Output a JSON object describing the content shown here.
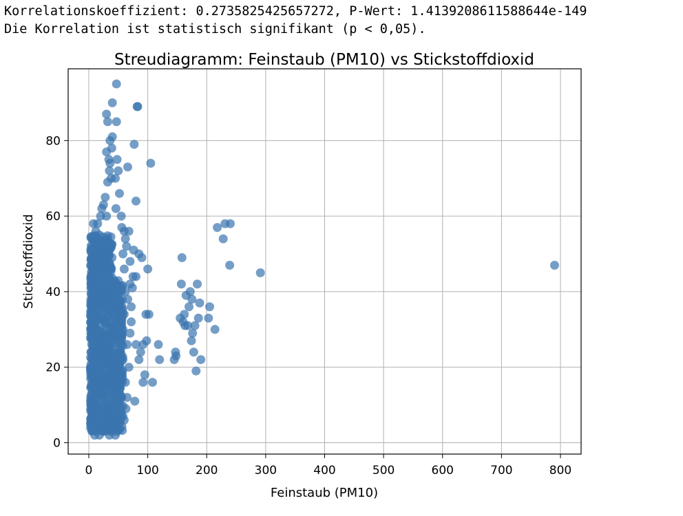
{
  "output_lines": [
    "Korrelationskoeffizient: 0.2735825425657272, P-Wert: 1.4139208611588644e-149",
    "Die Korrelation ist statistisch signifikant (p < 0,05)."
  ],
  "chart_data": {
    "type": "scatter",
    "title": "Streudiagramm: Feinstaub (PM10) vs Stickstoffdioxid",
    "xlabel": "Feinstaub (PM10)",
    "ylabel": "Stickstoffdioxid",
    "xlim": [
      -35,
      835
    ],
    "ylim": [
      -3,
      99
    ],
    "xticks": [
      0,
      100,
      200,
      300,
      400,
      500,
      600,
      700,
      800
    ],
    "yticks": [
      0,
      20,
      40,
      60,
      80
    ],
    "grid": true,
    "point_color": "#3b75af",
    "point_opacity": 0.7,
    "points": [
      [
        790,
        47
      ],
      [
        291,
        45
      ],
      [
        239,
        47
      ],
      [
        240,
        58
      ],
      [
        231,
        58
      ],
      [
        228,
        54
      ],
      [
        218,
        57
      ],
      [
        214,
        30
      ],
      [
        205,
        36
      ],
      [
        203,
        33
      ],
      [
        190,
        22
      ],
      [
        188,
        37
      ],
      [
        186,
        33
      ],
      [
        184,
        42
      ],
      [
        182,
        19
      ],
      [
        180,
        31
      ],
      [
        178,
        24
      ],
      [
        176,
        29
      ],
      [
        175,
        38
      ],
      [
        174,
        27
      ],
      [
        172,
        40
      ],
      [
        170,
        36
      ],
      [
        168,
        31
      ],
      [
        165,
        39
      ],
      [
        163,
        31
      ],
      [
        162,
        34
      ],
      [
        160,
        32
      ],
      [
        158,
        49
      ],
      [
        157,
        42
      ],
      [
        155,
        33
      ],
      [
        148,
        23
      ],
      [
        145,
        22
      ],
      [
        147,
        24
      ],
      [
        120,
        22
      ],
      [
        118,
        26
      ],
      [
        108,
        16
      ],
      [
        102,
        34
      ],
      [
        100,
        46
      ],
      [
        98,
        27
      ],
      [
        97,
        34
      ],
      [
        95,
        18
      ],
      [
        92,
        16
      ],
      [
        92,
        26
      ],
      [
        90,
        49
      ],
      [
        88,
        24
      ],
      [
        85,
        50
      ],
      [
        85,
        22
      ],
      [
        83,
        89
      ],
      [
        82,
        89
      ],
      [
        80,
        64
      ],
      [
        80,
        44
      ],
      [
        80,
        26
      ],
      [
        78,
        11
      ],
      [
        77,
        79
      ],
      [
        76,
        51
      ],
      [
        75,
        44
      ],
      [
        74,
        41
      ],
      [
        72,
        36
      ],
      [
        70,
        29
      ],
      [
        70,
        42
      ],
      [
        68,
        20
      ],
      [
        66,
        73
      ],
      [
        65,
        12
      ],
      [
        105,
        74
      ],
      [
        47,
        95
      ],
      [
        40,
        90
      ],
      [
        47,
        85
      ],
      [
        30,
        87
      ],
      [
        32,
        85
      ],
      [
        40,
        81
      ],
      [
        39,
        78
      ],
      [
        36,
        80
      ],
      [
        34,
        75
      ],
      [
        35,
        72
      ],
      [
        36,
        74
      ],
      [
        30,
        77
      ],
      [
        32,
        69
      ],
      [
        38,
        70
      ],
      [
        45,
        70
      ],
      [
        48,
        75
      ],
      [
        50,
        72
      ],
      [
        52,
        66
      ],
      [
        46,
        62
      ],
      [
        55,
        60
      ],
      [
        56,
        57
      ],
      [
        60,
        56
      ],
      [
        62,
        54
      ],
      [
        58,
        50
      ],
      [
        60,
        46
      ],
      [
        62,
        40
      ],
      [
        60,
        34
      ],
      [
        58,
        30
      ],
      [
        55,
        27
      ],
      [
        58,
        22
      ],
      [
        55,
        18
      ],
      [
        50,
        16
      ],
      [
        56,
        12
      ],
      [
        58,
        7
      ],
      [
        60,
        6
      ],
      [
        48,
        3
      ],
      [
        45,
        2
      ],
      [
        35,
        2
      ],
      [
        25,
        3
      ],
      [
        18,
        2
      ],
      [
        10,
        2
      ],
      [
        8,
        58
      ],
      [
        12,
        56
      ],
      [
        15,
        58
      ],
      [
        18,
        55
      ],
      [
        20,
        60
      ],
      [
        22,
        62
      ],
      [
        25,
        63
      ],
      [
        28,
        65
      ],
      [
        30,
        60
      ],
      [
        24,
        50
      ],
      [
        26,
        45
      ],
      [
        20,
        42
      ],
      [
        10,
        50
      ],
      [
        8,
        46
      ],
      [
        6,
        42
      ],
      [
        8,
        36
      ],
      [
        5,
        32
      ],
      [
        6,
        28
      ],
      [
        4,
        24
      ],
      [
        3,
        20
      ],
      [
        4,
        15
      ],
      [
        3,
        11
      ],
      [
        5,
        7
      ],
      [
        3,
        5
      ],
      [
        68,
        56
      ],
      [
        64,
        52
      ],
      [
        70,
        48
      ],
      [
        66,
        38
      ],
      [
        72,
        32
      ],
      [
        65,
        26
      ],
      [
        62,
        16
      ],
      [
        63,
        9
      ]
    ]
  }
}
